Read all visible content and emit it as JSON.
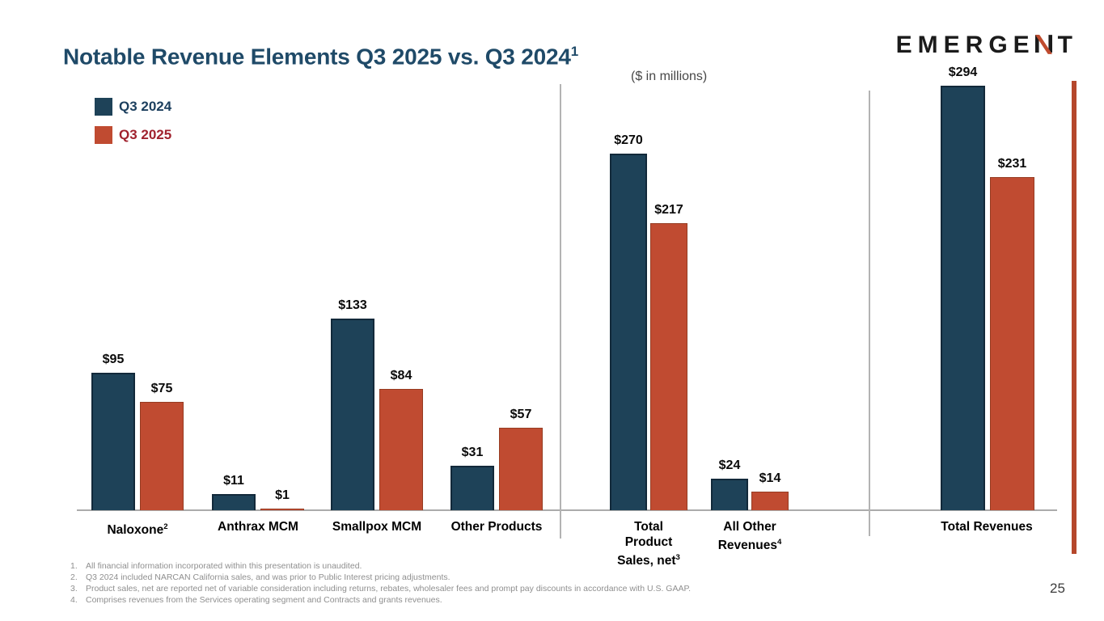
{
  "slide": {
    "title": "Notable Revenue Elements Q3 2025 vs. Q3 2024",
    "title_footnote_ref": "1",
    "subtitle": "($ in millions)",
    "page_number": "25"
  },
  "logo": {
    "text": "EMERGENT"
  },
  "colors": {
    "title_blue": "#1f4a68",
    "series_q3_2024": "#1e4258",
    "series_q3_2025": "#c04b31",
    "legend_text_2024": "#1c3f5e",
    "legend_text_2025": "#a0222e",
    "accent_bar_red": "#b5472c",
    "axis_gray": "#ababab",
    "footnote_gray": "#8f8f8f"
  },
  "legend": [
    {
      "label": "Q3 2024",
      "swatch_color": "#1e4258",
      "text_color": "#1c3f5e"
    },
    {
      "label": "Q3 2025",
      "swatch_color": "#c04b31",
      "text_color": "#a0222e"
    }
  ],
  "chart_data": {
    "type": "bar",
    "unit": "$ in millions",
    "legend_position": "top-left",
    "grid": false,
    "series": [
      "Q3 2024",
      "Q3 2025"
    ],
    "series_colors": [
      "#1e4258",
      "#c04b31"
    ],
    "groups": [
      {
        "category_lines": [
          "Naloxone"
        ],
        "footnote_ref": "2",
        "values": [
          95,
          75
        ],
        "labels": [
          "$95",
          "$75"
        ],
        "panel": 0
      },
      {
        "category_lines": [
          "Anthrax MCM"
        ],
        "footnote_ref": null,
        "values": [
          11,
          1
        ],
        "labels": [
          "$11",
          "$1"
        ],
        "panel": 0
      },
      {
        "category_lines": [
          "Smallpox MCM"
        ],
        "footnote_ref": null,
        "values": [
          133,
          84
        ],
        "labels": [
          "$133",
          "$84"
        ],
        "panel": 0
      },
      {
        "category_lines": [
          "Other Products"
        ],
        "footnote_ref": null,
        "values": [
          31,
          57
        ],
        "labels": [
          "$31",
          "$57"
        ],
        "panel": 0
      },
      {
        "category_lines": [
          "Total",
          "Product",
          "Sales, net"
        ],
        "footnote_ref": "3",
        "values": [
          270,
          217
        ],
        "labels": [
          "$270",
          "$217"
        ],
        "panel": 1
      },
      {
        "category_lines": [
          "All Other",
          "Revenues"
        ],
        "footnote_ref": "4",
        "values": [
          24,
          14
        ],
        "labels": [
          "$24",
          "$14"
        ],
        "panel": 1
      },
      {
        "category_lines": [
          "Total Revenues"
        ],
        "footnote_ref": null,
        "values": [
          294,
          231
        ],
        "labels": [
          "$294",
          "$231"
        ],
        "panel": 2
      }
    ]
  },
  "footnotes": [
    {
      "num": "1.",
      "text": "All financial information incorporated within this presentation is unaudited."
    },
    {
      "num": "2.",
      "text": "Q3 2024 included NARCAN California sales, and was prior to Public Interest pricing adjustments."
    },
    {
      "num": "3.",
      "text": "Product sales, net are reported net of variable consideration including returns, rebates, wholesaler fees and prompt pay discounts in accordance with U.S. GAAP."
    },
    {
      "num": "4.",
      "text": "Comprises revenues from the Services operating segment and Contracts and grants revenues."
    }
  ]
}
